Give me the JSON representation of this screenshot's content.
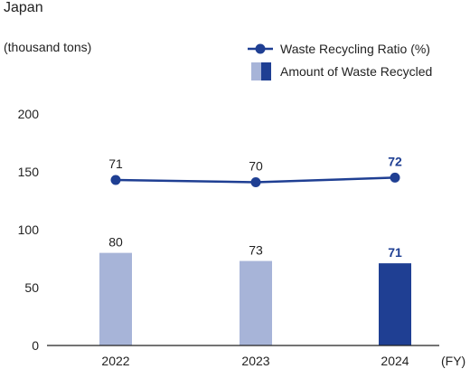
{
  "chart_data": {
    "type": "bar",
    "title": "Japan",
    "ylabel": "(thousand tons)",
    "xlabel": "(FY)",
    "categories": [
      "2022",
      "2023",
      "2024"
    ],
    "ylim": [
      0,
      200
    ],
    "yticks": [
      0,
      50,
      100,
      150,
      200
    ],
    "grid": false,
    "legend_position": "top-right",
    "series": [
      {
        "name": "Amount of Waste Recycled",
        "kind": "bar",
        "values": [
          80,
          73,
          71
        ],
        "labels": [
          "80",
          "73",
          "71"
        ],
        "colors": [
          "#a7b4d8",
          "#a7b4d8",
          "#1f3f93"
        ]
      },
      {
        "name": "Waste Recycling Ratio (%)",
        "kind": "line",
        "values": [
          71,
          70,
          72
        ],
        "labels": [
          "71",
          "70",
          "72"
        ],
        "plotted_on_scale": [
          143,
          141,
          145
        ],
        "color": "#1f3f93"
      }
    ],
    "highlight_category": "2024",
    "colors": {
      "text": "#222222",
      "highlight_text": "#1f3f93",
      "bar_light": "#a7b4d8",
      "bar_dark": "#1f3f93",
      "axis": "#222222"
    }
  }
}
